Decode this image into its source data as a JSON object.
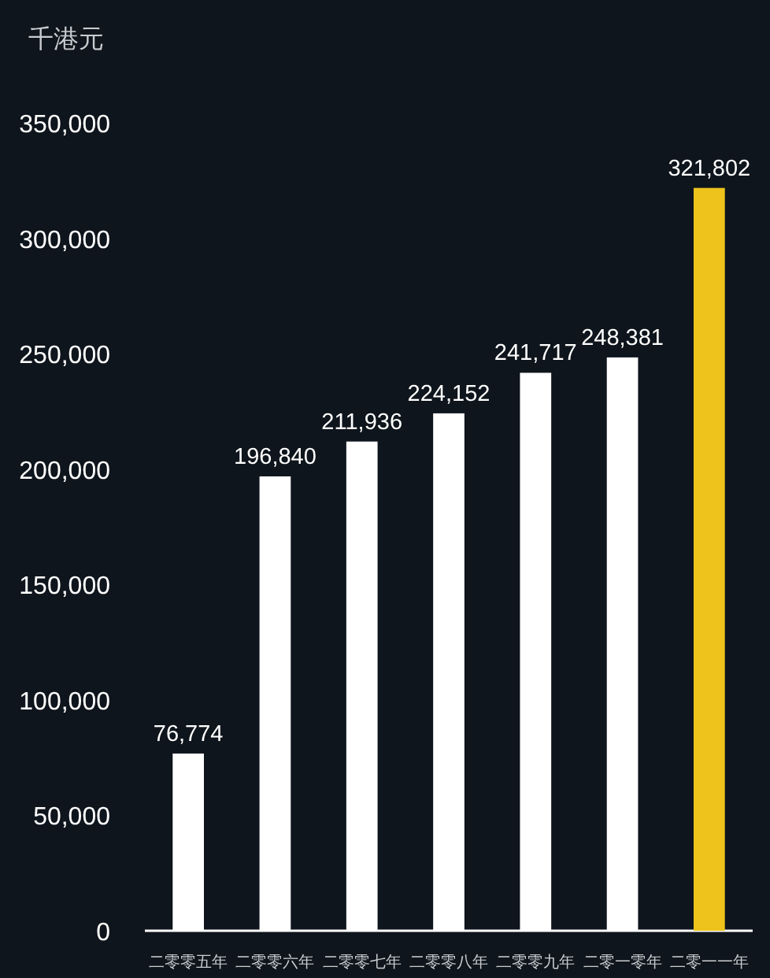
{
  "chart_data": {
    "type": "bar",
    "ylabel": "千港元",
    "categories": [
      "二零零五年",
      "二零零六年",
      "二零零七年",
      "二零零八年",
      "二零零九年",
      "二零一零年",
      "二零一一年"
    ],
    "values": [
      76774,
      196840,
      211936,
      224152,
      241717,
      248381,
      321802
    ],
    "colors": [
      "#ffffff",
      "#ffffff",
      "#ffffff",
      "#ffffff",
      "#ffffff",
      "#ffffff",
      "#edc31c"
    ],
    "value_labels": [
      "76,774",
      "196,840",
      "211,936",
      "224,152",
      "241,717",
      "248,381",
      "321,802"
    ],
    "ylim": [
      0,
      350000
    ],
    "yticks": [
      {
        "value": 0,
        "label": "0"
      },
      {
        "value": 50000,
        "label": "50,000"
      },
      {
        "value": 100000,
        "label": "100,000"
      },
      {
        "value": 150000,
        "label": "150,000"
      },
      {
        "value": 200000,
        "label": "200,000"
      },
      {
        "value": 250000,
        "label": "250,000"
      },
      {
        "value": 300000,
        "label": "300,000"
      },
      {
        "value": 350000,
        "label": "350,000"
      }
    ],
    "grid": false
  }
}
